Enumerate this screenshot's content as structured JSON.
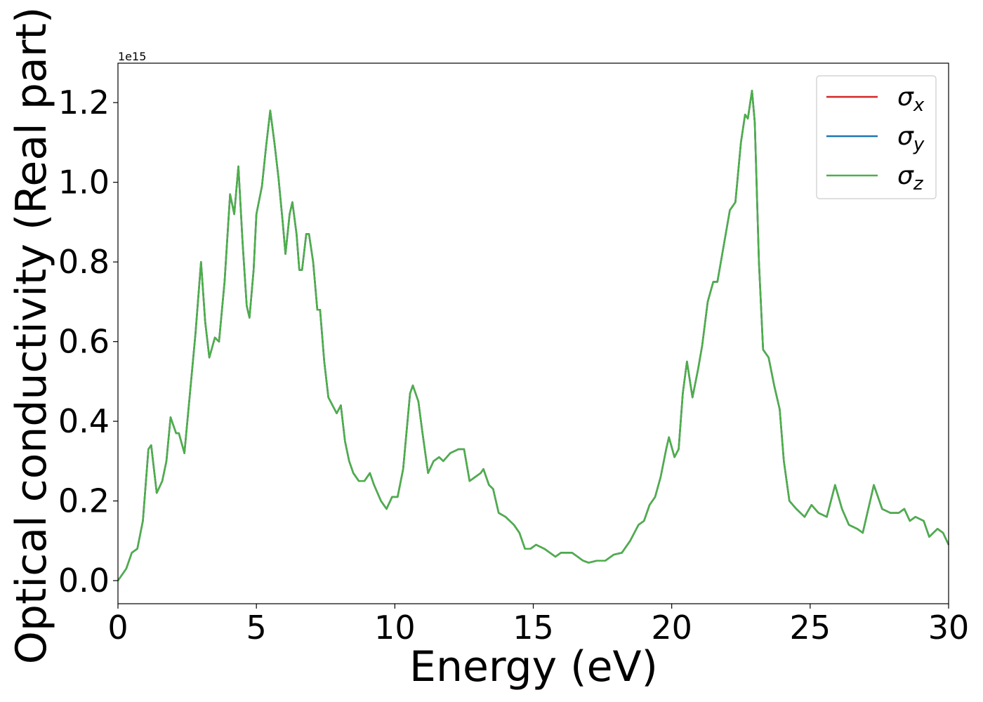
{
  "chart_data": {
    "type": "line",
    "xlabel": "Energy (eV)",
    "ylabel": "Optical conductivity (Real part)",
    "offset_text": "1e15",
    "x": [
      0,
      0.3,
      0.5,
      0.7,
      0.9,
      1.1,
      1.2,
      1.4,
      1.6,
      1.75,
      1.9,
      2.1,
      2.2,
      2.4,
      2.6,
      2.8,
      3.0,
      3.15,
      3.3,
      3.5,
      3.65,
      3.85,
      4.05,
      4.2,
      4.35,
      4.5,
      4.65,
      4.75,
      4.9,
      5.0,
      5.2,
      5.35,
      5.5,
      5.65,
      5.8,
      5.95,
      6.05,
      6.2,
      6.3,
      6.45,
      6.55,
      6.65,
      6.8,
      6.9,
      7.05,
      7.2,
      7.3,
      7.45,
      7.6,
      7.75,
      7.9,
      8.05,
      8.2,
      8.35,
      8.5,
      8.7,
      8.9,
      9.1,
      9.25,
      9.5,
      9.7,
      9.9,
      10.1,
      10.3,
      10.55,
      10.65,
      10.85,
      11.0,
      11.2,
      11.4,
      11.6,
      11.75,
      12.0,
      12.3,
      12.5,
      12.7,
      12.9,
      13.1,
      13.2,
      13.4,
      13.55,
      13.75,
      14.0,
      14.3,
      14.5,
      14.7,
      14.9,
      15.1,
      15.4,
      15.6,
      15.8,
      16.0,
      16.4,
      16.6,
      16.8,
      17.0,
      17.3,
      17.6,
      17.9,
      18.2,
      18.5,
      18.8,
      19.0,
      19.2,
      19.4,
      19.6,
      19.8,
      19.9,
      20.1,
      20.25,
      20.4,
      20.55,
      20.75,
      20.95,
      21.1,
      21.3,
      21.5,
      21.65,
      21.9,
      22.1,
      22.3,
      22.5,
      22.65,
      22.75,
      22.9,
      23.0,
      23.15,
      23.3,
      23.5,
      23.7,
      23.9,
      24.05,
      24.25,
      24.5,
      24.8,
      25.05,
      25.3,
      25.6,
      25.9,
      26.15,
      26.4,
      26.7,
      26.9,
      27.3,
      27.6,
      27.9,
      28.2,
      28.4,
      28.6,
      28.8,
      29.1,
      29.3,
      29.6,
      29.8,
      30.0
    ],
    "series": [
      {
        "name": "σx",
        "color": "#d62728",
        "values": [
          0.0,
          0.03,
          0.07,
          0.08,
          0.15,
          0.33,
          0.34,
          0.22,
          0.25,
          0.3,
          0.41,
          0.37,
          0.37,
          0.32,
          0.47,
          0.62,
          0.8,
          0.65,
          0.56,
          0.61,
          0.6,
          0.75,
          0.97,
          0.92,
          1.04,
          0.85,
          0.69,
          0.66,
          0.78,
          0.92,
          0.99,
          1.09,
          1.18,
          1.1,
          1.01,
          0.9,
          0.82,
          0.92,
          0.95,
          0.87,
          0.78,
          0.78,
          0.87,
          0.87,
          0.8,
          0.68,
          0.68,
          0.55,
          0.46,
          0.44,
          0.42,
          0.44,
          0.35,
          0.3,
          0.27,
          0.25,
          0.25,
          0.27,
          0.24,
          0.2,
          0.18,
          0.21,
          0.21,
          0.28,
          0.47,
          0.49,
          0.45,
          0.37,
          0.27,
          0.3,
          0.31,
          0.3,
          0.32,
          0.33,
          0.33,
          0.25,
          0.26,
          0.27,
          0.28,
          0.24,
          0.23,
          0.17,
          0.16,
          0.14,
          0.12,
          0.08,
          0.08,
          0.09,
          0.08,
          0.07,
          0.06,
          0.07,
          0.07,
          0.06,
          0.05,
          0.045,
          0.05,
          0.05,
          0.065,
          0.07,
          0.1,
          0.14,
          0.15,
          0.19,
          0.21,
          0.26,
          0.33,
          0.36,
          0.31,
          0.33,
          0.47,
          0.55,
          0.46,
          0.53,
          0.59,
          0.7,
          0.75,
          0.75,
          0.85,
          0.93,
          0.95,
          1.1,
          1.17,
          1.16,
          1.23,
          1.15,
          0.8,
          0.58,
          0.56,
          0.49,
          0.43,
          0.3,
          0.2,
          0.18,
          0.16,
          0.19,
          0.17,
          0.16,
          0.24,
          0.18,
          0.14,
          0.13,
          0.12,
          0.24,
          0.18,
          0.17,
          0.17,
          0.18,
          0.15,
          0.16,
          0.15,
          0.11,
          0.13,
          0.12,
          0.09
        ]
      },
      {
        "name": "σy",
        "color": "#1f77b4",
        "values": [
          0.0,
          0.03,
          0.07,
          0.08,
          0.15,
          0.33,
          0.34,
          0.22,
          0.25,
          0.3,
          0.41,
          0.37,
          0.37,
          0.32,
          0.47,
          0.62,
          0.8,
          0.65,
          0.56,
          0.61,
          0.6,
          0.75,
          0.97,
          0.92,
          1.04,
          0.85,
          0.69,
          0.66,
          0.78,
          0.92,
          0.99,
          1.09,
          1.18,
          1.1,
          1.01,
          0.9,
          0.82,
          0.92,
          0.95,
          0.87,
          0.78,
          0.78,
          0.87,
          0.87,
          0.8,
          0.68,
          0.68,
          0.55,
          0.46,
          0.44,
          0.42,
          0.44,
          0.35,
          0.3,
          0.27,
          0.25,
          0.25,
          0.27,
          0.24,
          0.2,
          0.18,
          0.21,
          0.21,
          0.28,
          0.47,
          0.49,
          0.45,
          0.37,
          0.27,
          0.3,
          0.31,
          0.3,
          0.32,
          0.33,
          0.33,
          0.25,
          0.26,
          0.27,
          0.28,
          0.24,
          0.23,
          0.17,
          0.16,
          0.14,
          0.12,
          0.08,
          0.08,
          0.09,
          0.08,
          0.07,
          0.06,
          0.07,
          0.07,
          0.06,
          0.05,
          0.045,
          0.05,
          0.05,
          0.065,
          0.07,
          0.1,
          0.14,
          0.15,
          0.19,
          0.21,
          0.26,
          0.33,
          0.36,
          0.31,
          0.33,
          0.47,
          0.55,
          0.46,
          0.53,
          0.59,
          0.7,
          0.75,
          0.75,
          0.85,
          0.93,
          0.95,
          1.1,
          1.17,
          1.16,
          1.23,
          1.15,
          0.8,
          0.58,
          0.56,
          0.49,
          0.43,
          0.3,
          0.2,
          0.18,
          0.16,
          0.19,
          0.17,
          0.16,
          0.24,
          0.18,
          0.14,
          0.13,
          0.12,
          0.24,
          0.18,
          0.17,
          0.17,
          0.18,
          0.15,
          0.16,
          0.15,
          0.11,
          0.13,
          0.12,
          0.09
        ]
      },
      {
        "name": "σz",
        "color": "#4daf4a",
        "values": [
          0.0,
          0.03,
          0.07,
          0.08,
          0.15,
          0.33,
          0.34,
          0.22,
          0.25,
          0.3,
          0.41,
          0.37,
          0.37,
          0.32,
          0.47,
          0.62,
          0.8,
          0.65,
          0.56,
          0.61,
          0.6,
          0.75,
          0.97,
          0.92,
          1.04,
          0.85,
          0.69,
          0.66,
          0.78,
          0.92,
          0.99,
          1.09,
          1.18,
          1.1,
          1.01,
          0.9,
          0.82,
          0.92,
          0.95,
          0.87,
          0.78,
          0.78,
          0.87,
          0.87,
          0.8,
          0.68,
          0.68,
          0.55,
          0.46,
          0.44,
          0.42,
          0.44,
          0.35,
          0.3,
          0.27,
          0.25,
          0.25,
          0.27,
          0.24,
          0.2,
          0.18,
          0.21,
          0.21,
          0.28,
          0.47,
          0.49,
          0.45,
          0.37,
          0.27,
          0.3,
          0.31,
          0.3,
          0.32,
          0.33,
          0.33,
          0.25,
          0.26,
          0.27,
          0.28,
          0.24,
          0.23,
          0.17,
          0.16,
          0.14,
          0.12,
          0.08,
          0.08,
          0.09,
          0.08,
          0.07,
          0.06,
          0.07,
          0.07,
          0.06,
          0.05,
          0.045,
          0.05,
          0.05,
          0.065,
          0.07,
          0.1,
          0.14,
          0.15,
          0.19,
          0.21,
          0.26,
          0.33,
          0.36,
          0.31,
          0.33,
          0.47,
          0.55,
          0.46,
          0.53,
          0.59,
          0.7,
          0.75,
          0.75,
          0.85,
          0.93,
          0.95,
          1.1,
          1.17,
          1.16,
          1.23,
          1.15,
          0.8,
          0.58,
          0.56,
          0.49,
          0.43,
          0.3,
          0.2,
          0.18,
          0.16,
          0.19,
          0.17,
          0.16,
          0.24,
          0.18,
          0.14,
          0.13,
          0.12,
          0.24,
          0.18,
          0.17,
          0.17,
          0.18,
          0.15,
          0.16,
          0.15,
          0.11,
          0.13,
          0.12,
          0.09
        ]
      }
    ],
    "xlim": [
      0,
      30
    ],
    "xticks": [
      0,
      5,
      10,
      15,
      20,
      25,
      30
    ],
    "ylim": [
      -0.058,
      1.299
    ],
    "yticks": [
      {
        "value": 0,
        "label": "0.0"
      },
      0.2,
      0.4,
      0.6,
      0.8,
      {
        "value": 1,
        "label": "1.0"
      },
      1.2
    ],
    "grid": false,
    "legend": "upper right"
  }
}
